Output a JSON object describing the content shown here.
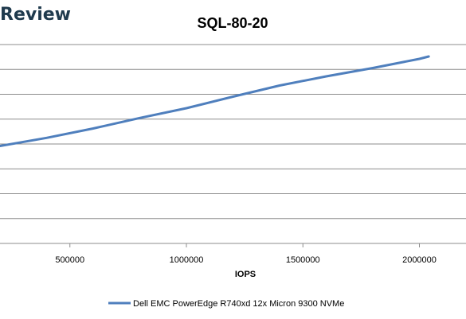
{
  "brand": {
    "text": "Review"
  },
  "chart_data": {
    "type": "line",
    "title": "SQL-80-20",
    "xlabel": "IOPS",
    "ylabel": "",
    "x_ticks": [
      500000,
      1000000,
      1500000,
      2000000
    ],
    "x_tick_labels": [
      "500000",
      "1000000",
      "1500000",
      "2000000"
    ],
    "xlim": [
      200000,
      2200000
    ],
    "ylim": [
      0,
      1
    ],
    "grid": true,
    "legend_position": "bottom",
    "colors": {
      "series": "#4f7fbd",
      "grid": "#8c8c8c"
    },
    "series": [
      {
        "name": "Dell EMC PowerEdge R740xd 12x Micron 9300 NVMe",
        "x": [
          200000,
          400000,
          600000,
          800000,
          1000000,
          1200000,
          1400000,
          1600000,
          1800000,
          2000000,
          2040000
        ],
        "y": [
          0.49,
          0.531,
          0.578,
          0.631,
          0.68,
          0.738,
          0.794,
          0.84,
          0.882,
          0.928,
          0.94
        ]
      }
    ]
  }
}
